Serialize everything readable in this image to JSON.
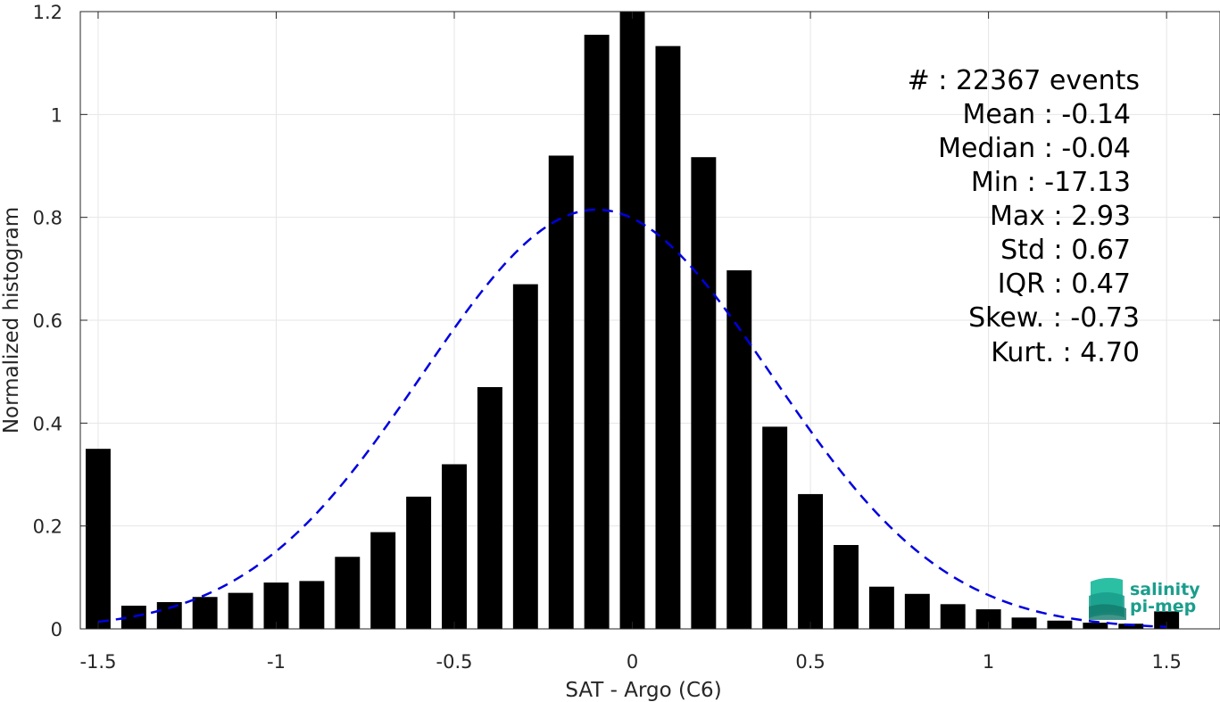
{
  "chart_data": {
    "type": "bar",
    "xlabel": "SAT - Argo (C6)",
    "ylabel": "Normalized histogram",
    "xlim": [
      -1.55,
      1.65
    ],
    "ylim": [
      0,
      1.2
    ],
    "xticks": [
      -1.5,
      -1,
      -0.5,
      0,
      0.5,
      1,
      1.5
    ],
    "xtick_labels": [
      "-1.5",
      "-1",
      "-0.5",
      "0",
      "0.5",
      "1",
      "1.5"
    ],
    "yticks": [
      0,
      0.2,
      0.4,
      0.6,
      0.8,
      1,
      1.2
    ],
    "ytick_labels": [
      "0",
      "0.2",
      "0.4",
      "0.6",
      "0.8",
      "1",
      "1.2"
    ],
    "grid": true,
    "bar_color": "#000000",
    "bar_width": 0.07,
    "bars": {
      "x": [
        -1.5,
        -1.4,
        -1.3,
        -1.2,
        -1.1,
        -1.0,
        -0.9,
        -0.8,
        -0.7,
        -0.6,
        -0.5,
        -0.4,
        -0.3,
        -0.2,
        -0.1,
        0.0,
        0.1,
        0.2,
        0.3,
        0.4,
        0.5,
        0.6,
        0.7,
        0.8,
        0.9,
        1.0,
        1.1,
        1.2,
        1.3,
        1.4,
        1.5
      ],
      "values": [
        0.35,
        0.045,
        0.052,
        0.062,
        0.07,
        0.09,
        0.093,
        0.14,
        0.188,
        0.257,
        0.32,
        0.47,
        0.67,
        0.92,
        1.155,
        1.2,
        1.133,
        0.917,
        0.697,
        0.393,
        0.262,
        0.163,
        0.082,
        0.068,
        0.048,
        0.038,
        0.022,
        0.016,
        0.012,
        0.01,
        0.034
      ]
    },
    "fit_curve": {
      "style": "dashed",
      "color": "#0000e0",
      "mean": -0.1,
      "std": 0.49,
      "peak": 0.815,
      "x_range": [
        -1.5,
        1.5
      ]
    },
    "annotations": {
      "count_line": "#  : 22367 events",
      "stats": [
        "Mean : -0.14",
        "Median : -0.04",
        "Min : -17.13",
        "Max : 2.93",
        "Std : 0.67",
        "IQR : 0.47",
        "Skew. : -0.73",
        "Kurt. : 4.70"
      ]
    },
    "logo": {
      "line1": "salinity",
      "line2": "pi-mep",
      "color": "#1a9e8c"
    }
  }
}
